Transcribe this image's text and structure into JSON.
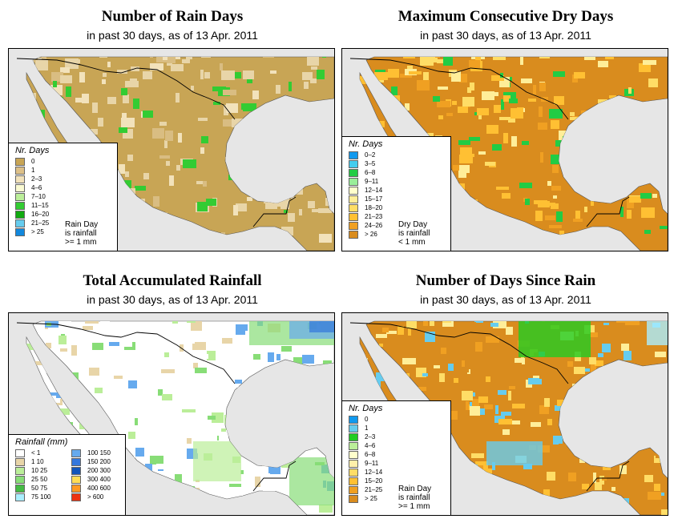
{
  "colors": {
    "ocean": "#e6e6e6",
    "land_dry": "#c8a555",
    "land_light": "#e8d5a8",
    "land_orange": "#d98c1e",
    "white": "#ffffff",
    "border": "#000000"
  },
  "panels": [
    {
      "title": "Number of Rain Days",
      "subtitle": "in past 30 days, as of  13 Apr. 2011",
      "base_color": "#c8a555",
      "legend": {
        "title": "Nr. Days",
        "items": [
          {
            "label": "0",
            "color": "#c8a555"
          },
          {
            "label": "1",
            "color": "#ddc088"
          },
          {
            "label": "2–3",
            "color": "#f2e2bb"
          },
          {
            "label": "4–6",
            "color": "#fafad2"
          },
          {
            "label": "7–10",
            "color": "#bbee99"
          },
          {
            "label": "11–15",
            "color": "#33cc33"
          },
          {
            "label": "16–20",
            "color": "#11aa11"
          },
          {
            "label": "21–25",
            "color": "#66ccee"
          },
          {
            "label": "> 25",
            "color": "#1188dd"
          }
        ],
        "note": [
          "Rain Day",
          "is rainfall",
          ">= 1 mm"
        ]
      }
    },
    {
      "title": "Maximum Consecutive Dry Days",
      "subtitle": "in past 30 days, as of  13 Apr. 2011",
      "base_color": "#d98c1e",
      "legend": {
        "title": "Nr. Days",
        "items": [
          {
            "label": "0–2",
            "color": "#1199ee"
          },
          {
            "label": "3–5",
            "color": "#44ccee"
          },
          {
            "label": "6–8",
            "color": "#22cc44"
          },
          {
            "label": "9–11",
            "color": "#99ee99"
          },
          {
            "label": "12–14",
            "color": "#ffffcc"
          },
          {
            "label": "15–17",
            "color": "#ffee99"
          },
          {
            "label": "18–20",
            "color": "#ffdd66"
          },
          {
            "label": "21–23",
            "color": "#ffc033"
          },
          {
            "label": "24–26",
            "color": "#f0a022"
          },
          {
            "label": "> 26",
            "color": "#d98c1e"
          }
        ],
        "note": [
          "Dry Day",
          "is rainfall",
          "< 1 mm"
        ]
      }
    },
    {
      "title": "Total Accumulated Rainfall",
      "subtitle": "in past 30 days, as of  13 Apr. 2011",
      "base_color": "#ffffff",
      "legend": {
        "title": "Rainfall (mm)",
        "items_left": [
          {
            "label": "< 1",
            "color": "#ffffff"
          },
          {
            "label": "1    10",
            "color": "#e8d5a8"
          },
          {
            "label": "10    25",
            "color": "#bbee99"
          },
          {
            "label": "25    50",
            "color": "#88dd77"
          },
          {
            "label": "50    75",
            "color": "#44bb44"
          },
          {
            "label": "75    100",
            "color": "#aaeeff"
          }
        ],
        "items_right": [
          {
            "label": "100    150",
            "color": "#66aaee"
          },
          {
            "label": "150    200",
            "color": "#3377dd"
          },
          {
            "label": "200    300",
            "color": "#1155bb"
          },
          {
            "label": "300    400",
            "color": "#ffdd55"
          },
          {
            "label": "400    600",
            "color": "#ff9922"
          },
          {
            "label": "> 600",
            "color": "#ee3311"
          }
        ]
      }
    },
    {
      "title": "Number of Days Since Rain",
      "subtitle": "in past 30 days, as of  13 Apr. 2011",
      "base_color": "#d98c1e",
      "legend": {
        "title": "Nr. Days",
        "items": [
          {
            "label": "0",
            "color": "#1199ee"
          },
          {
            "label": "1",
            "color": "#66ccee"
          },
          {
            "label": "2–3",
            "color": "#22cc22"
          },
          {
            "label": "4–6",
            "color": "#bbee99"
          },
          {
            "label": "6–8",
            "color": "#ffffcc"
          },
          {
            "label": "9–11",
            "color": "#fff0aa"
          },
          {
            "label": "12–14",
            "color": "#ffdd66"
          },
          {
            "label": "15–20",
            "color": "#ffc033"
          },
          {
            "label": "21–25",
            "color": "#f0a022"
          },
          {
            "label": "> 25",
            "color": "#d98c1e"
          }
        ],
        "note": [
          "Rain Day",
          "is rainfall",
          ">= 1 mm"
        ]
      }
    }
  ]
}
